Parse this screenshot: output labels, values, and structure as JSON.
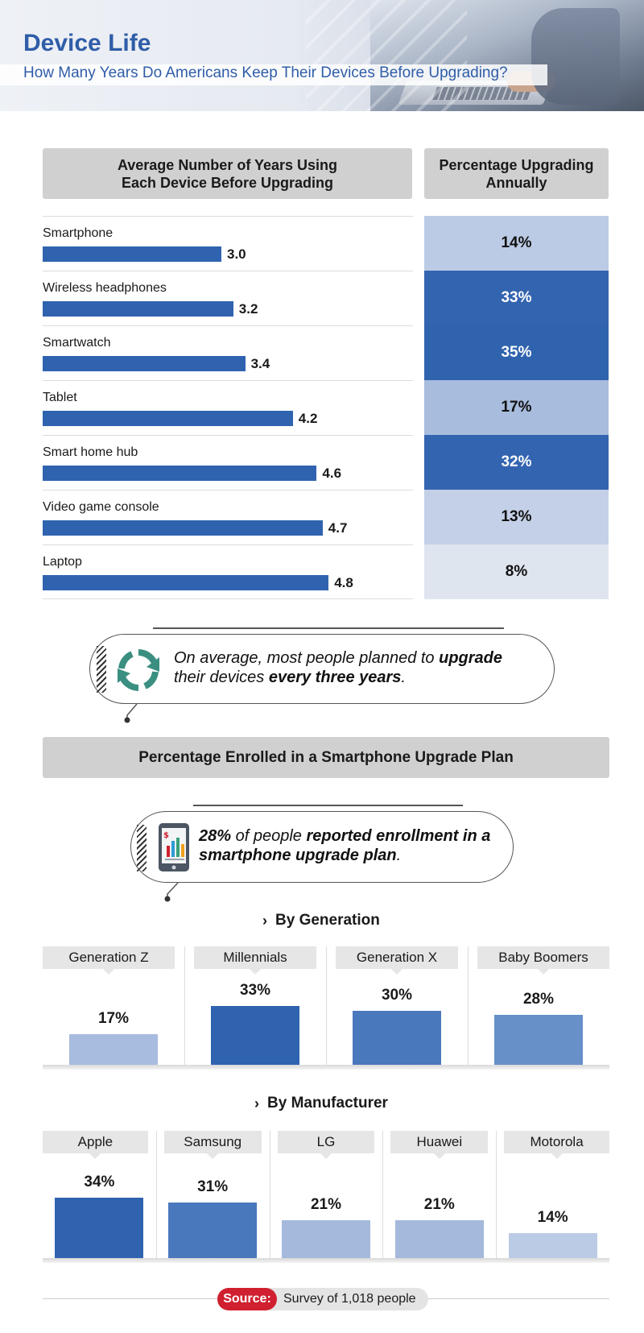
{
  "header": {
    "title": "Device Life",
    "subtitle": "How Many Years Do Americans Keep Their Devices Before Upgrading?"
  },
  "device_section": {
    "years_header": "Average Number of Years Using\nEach Device Before Upgrading",
    "pct_header": "Percentage Upgrading\nAnnually"
  },
  "callout1": {
    "parts": [
      "On average, most people planned to ",
      "upgrade",
      " their devices ",
      "every three years",
      "."
    ],
    "icon": "refresh-arrows-icon"
  },
  "plan_section": {
    "header": "Percentage Enrolled in a Smartphone Upgrade Plan"
  },
  "callout2": {
    "parts": [
      "28%",
      " of people ",
      "reported enrollment in a smartphone upgrade plan",
      "."
    ],
    "icon": "tablet-chart-icon"
  },
  "source": {
    "tag": "Source:",
    "text": "Survey of 1,018 people"
  },
  "colors": {
    "bar_blue": "#2f63b0",
    "title_blue": "#2f5da8",
    "source_red": "#d0202f"
  },
  "chart_data": [
    {
      "type": "bar",
      "orientation": "horizontal",
      "title": "Average Number of Years Using Each Device Before Upgrading",
      "categories": [
        "Smartphone",
        "Wireless headphones",
        "Smartwatch",
        "Tablet",
        "Smart home hub",
        "Video game console",
        "Laptop"
      ],
      "values": [
        3.0,
        3.2,
        3.4,
        4.2,
        4.6,
        4.7,
        4.8
      ],
      "value_labels": [
        "3.0",
        "3.2",
        "3.4",
        "4.2",
        "4.6",
        "4.7",
        "4.8"
      ],
      "xlim": [
        0,
        6
      ]
    },
    {
      "type": "table",
      "title": "Percentage Upgrading Annually",
      "categories": [
        "Smartphone",
        "Wireless headphones",
        "Smartwatch",
        "Tablet",
        "Smart home hub",
        "Video game console",
        "Laptop"
      ],
      "values": [
        14,
        33,
        35,
        17,
        32,
        13,
        8
      ],
      "value_labels": [
        "14%",
        "33%",
        "35%",
        "17%",
        "32%",
        "13%",
        "8%"
      ]
    },
    {
      "type": "bar",
      "title": "By Generation",
      "categories": [
        "Generation Z",
        "Millennials",
        "Generation X",
        "Baby Boomers"
      ],
      "values": [
        17,
        33,
        30,
        28
      ],
      "value_labels": [
        "17%",
        "33%",
        "30%",
        "28%"
      ],
      "ylim": [
        0,
        40
      ]
    },
    {
      "type": "bar",
      "title": "By Manufacturer",
      "categories": [
        "Apple",
        "Samsung",
        "LG",
        "Huawei",
        "Motorola"
      ],
      "values": [
        34,
        31,
        21,
        21,
        14
      ],
      "value_labels": [
        "34%",
        "31%",
        "21%",
        "21%",
        "14%"
      ],
      "ylim": [
        0,
        40
      ]
    }
  ]
}
